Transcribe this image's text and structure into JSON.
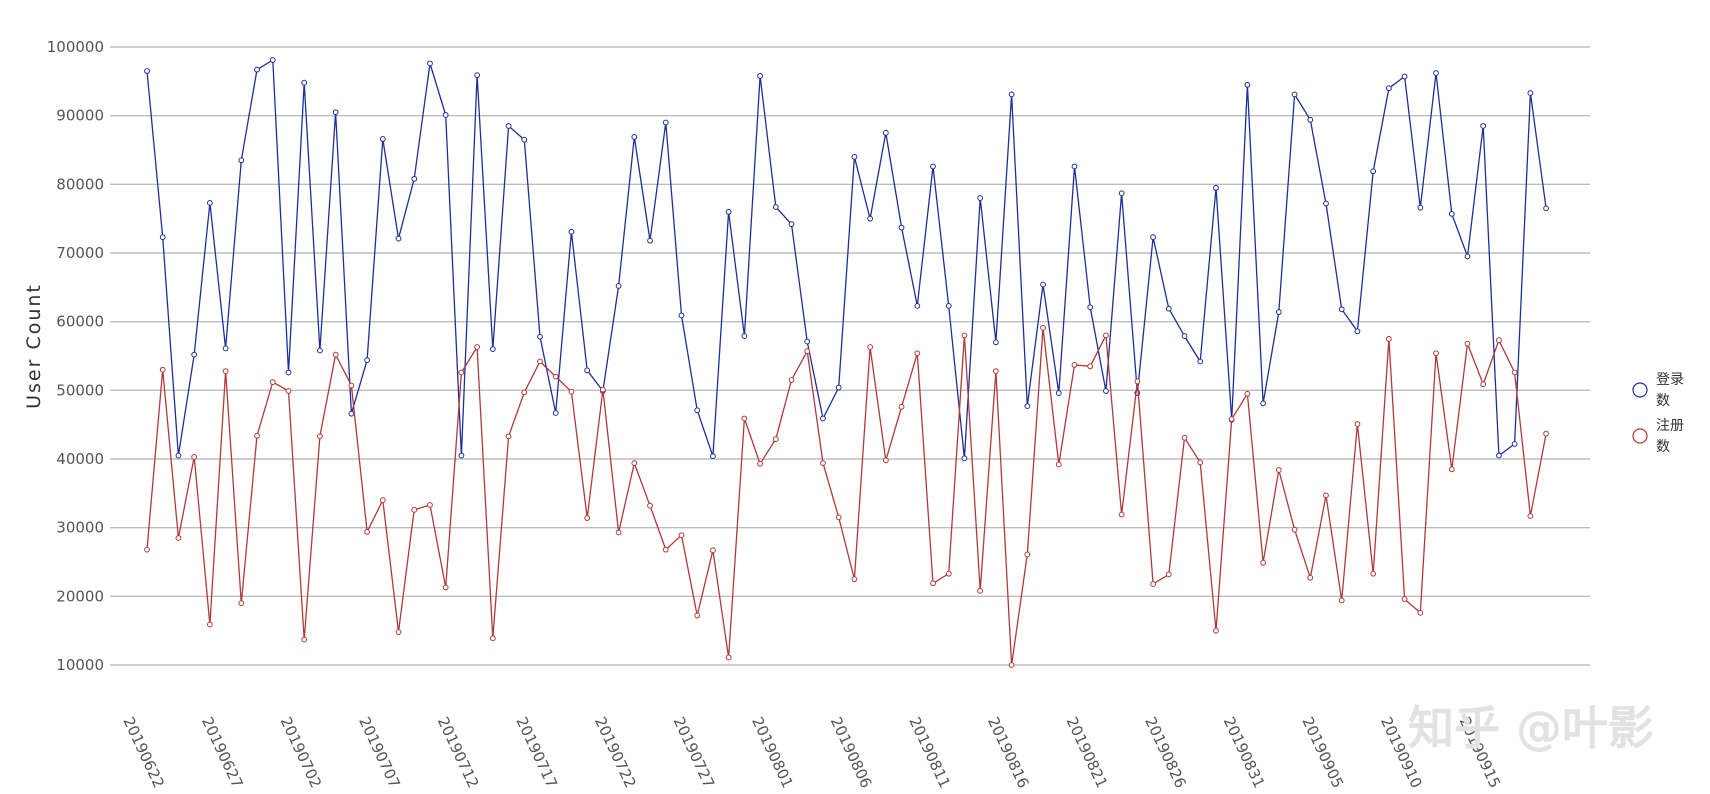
{
  "chart_data": {
    "type": "line",
    "ylabel": "User Count",
    "xlabel": "",
    "ylim": [
      10000,
      100000
    ],
    "yticks": [
      10000,
      20000,
      30000,
      40000,
      50000,
      60000,
      70000,
      80000,
      90000,
      100000
    ],
    "grid": true,
    "legend_position": "right",
    "start_date": "20190622",
    "x_tick_labels": [
      "20190622",
      "20190627",
      "20190702",
      "20190707",
      "20190712",
      "20190717",
      "20190722",
      "20190727",
      "20190801",
      "20190806",
      "20190811",
      "20190816",
      "20190821",
      "20190826",
      "20190831",
      "20190905",
      "20190910",
      "20190915"
    ],
    "series": [
      {
        "name": "登录数",
        "color": "#1f2f9a",
        "values": [
          96500,
          72300,
          40500,
          55200,
          77300,
          56100,
          83500,
          96700,
          98100,
          52600,
          94800,
          55800,
          90500,
          46600,
          54400,
          86600,
          72100,
          80800,
          97600,
          90100,
          40500,
          95900,
          56000,
          88500,
          86500,
          57800,
          46700,
          73100,
          52900,
          49900,
          65200,
          86900,
          71800,
          89000,
          60900,
          47100,
          40400,
          76000,
          57900,
          95800,
          76700,
          74200,
          57100,
          45900,
          50400,
          84000,
          75000,
          87500,
          73700,
          62300,
          82600,
          62300,
          40100,
          78000,
          57000,
          93100,
          47700,
          65400,
          49600,
          82600,
          62100,
          49900,
          78700,
          49600,
          72300,
          61900,
          57900,
          54200,
          79500,
          45700,
          94500,
          48100,
          61400,
          93100,
          89400,
          77200,
          61800,
          58600,
          81900,
          94000,
          95700,
          76600,
          96200,
          75700,
          69500,
          88500,
          40500,
          42200,
          93300,
          76500
        ]
      },
      {
        "name": "注册数",
        "color": "#b03a3a",
        "values": [
          26800,
          53000,
          28500,
          40300,
          15900,
          52800,
          19000,
          43400,
          51200,
          49900,
          13700,
          43300,
          55200,
          50700,
          29400,
          34000,
          14800,
          32600,
          33300,
          21300,
          52600,
          56300,
          13900,
          43300,
          49700,
          54200,
          52000,
          49800,
          31400,
          50100,
          29300,
          39400,
          33200,
          26800,
          28900,
          17200,
          26700,
          11100,
          45900,
          39300,
          42900,
          51500,
          55700,
          39400,
          31500,
          22500,
          56300,
          39800,
          47600,
          55400,
          21900,
          23300,
          58000,
          20800,
          52800,
          10000,
          26100,
          59100,
          39200,
          53700,
          53500,
          58000,
          31900,
          51300,
          21800,
          23200,
          43100,
          39500,
          15000,
          45800,
          49500,
          24900,
          38400,
          29700,
          22700,
          34700,
          19400,
          45100,
          23300,
          57500,
          19600,
          17600,
          55400,
          38500,
          56800,
          50900,
          57300,
          52600,
          31700,
          43700
        ]
      }
    ]
  },
  "watermark": "知乎 @叶影"
}
